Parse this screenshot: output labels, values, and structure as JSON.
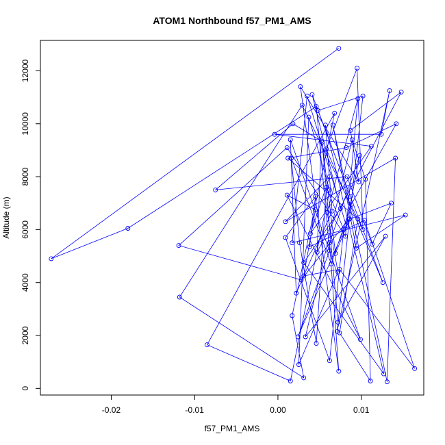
{
  "chart_data": {
    "type": "line",
    "title": "ATOM1 Northbound f57_PM1_AMS",
    "xlabel": "f57_PM1_AMS",
    "ylabel": "Altitude (m)",
    "xlim": [
      -0.0285,
      0.0175
    ],
    "ylim": [
      -250,
      13150
    ],
    "xticks": [
      -0.02,
      -0.01,
      0.0,
      0.01
    ],
    "xtick_labels": [
      "-0.02",
      "-0.01",
      "0.00",
      "0.01"
    ],
    "yticks": [
      0,
      2000,
      4000,
      6000,
      8000,
      10000,
      12000
    ],
    "ytick_labels": [
      "0",
      "2000",
      "4000",
      "6000",
      "8000",
      "10000",
      "12000"
    ],
    "grid": false,
    "marker": "open-circle",
    "series": [
      {
        "color": "#0000ff",
        "x": [
          0.0073,
          -0.0272,
          -0.018,
          0.0046,
          0.0062,
          0.0024,
          0.0085,
          0.0028,
          -0.0119,
          0.0011,
          0.0081,
          0.0096,
          0.0059,
          0.0072,
          0.0025,
          0.0037,
          0.0062,
          0.0015,
          -0.0085,
          0.0068,
          0.0017,
          0.0031,
          -0.0118,
          0.0029,
          0.0102,
          0.0095,
          0.0058,
          0.0126,
          0.0048,
          0.0102,
          0.0071,
          0.0134,
          0.0124,
          -0.0004,
          0.0112,
          0.0039,
          0.0062,
          0.0009,
          0.0141,
          0.0131,
          0.0066,
          0.0094,
          0.0153,
          0.0017,
          0.0035,
          0.0082,
          0.0098,
          0.0062,
          0.0073,
          0.0027,
          0.0097,
          0.0087,
          0.0148,
          0.0047,
          0.0052,
          0.0018,
          -0.0075,
          0.0083,
          0.0113,
          0.0136,
          0.0086,
          0.0069,
          0.0053,
          0.0072,
          0.0129,
          0.0033,
          0.0089,
          0.0105,
          0.0111,
          0.0074,
          0.0096,
          0.0012,
          0.0082,
          0.0142,
          0.0088,
          0.0064,
          0.0016,
          0.0026,
          0.0046,
          0.0058,
          0.0079,
          0.0062,
          0.0009,
          0.0045,
          0.0038,
          0.0104,
          0.0164,
          0.0074,
          0.0031,
          0.0045,
          0.0011,
          0.0099,
          0.0015,
          0.0022,
          0.0065,
          0.0057,
          0.0127,
          0.0031,
          0.0075,
          0.0041,
          0.0087
        ],
        "y": [
          12850,
          4900,
          6050,
          10650,
          5200,
          1950,
          6400,
          4100,
          5400,
          9100,
          5750,
          10950,
          6650,
          4400,
          900,
          10250,
          7500,
          280,
          1650,
          10400,
          2750,
          400,
          3450,
          10700,
          6000,
          12100,
          9050,
          4000,
          10500,
          11050,
          2150,
          11250,
          9600,
          9600,
          9150,
          5850,
          8000,
          6300,
          8700,
          250,
          9950,
          5300,
          6550,
          5500,
          11050,
          6150,
          8800,
          5500,
          650,
          11400,
          7800,
          9750,
          11200,
          5150,
          9350,
          10000,
          7500,
          8000,
          5450,
          7000,
          6400,
          5100,
          9300,
          2500,
          5750,
          1950,
          9400,
          7900,
          280,
          2100,
          6400,
          8700,
          9100,
          10000,
          6950,
          4700,
          8700,
          5500,
          1700,
          7600,
          6000,
          1050,
          5700,
          7250,
          5350,
          6350,
          750,
          4500,
          4250,
          6750,
          7300,
          1850,
          9400,
          3600,
          6700,
          9950,
          550,
          4750,
          6800,
          11100,
          7250
        ]
      }
    ]
  }
}
